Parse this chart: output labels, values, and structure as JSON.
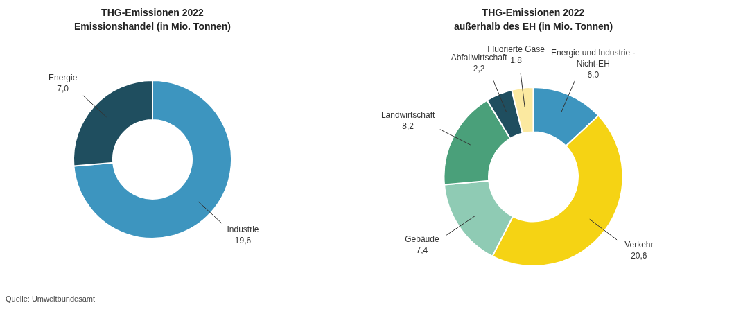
{
  "chart_data": [
    {
      "type": "donut",
      "title": "THG-Emissionen 2022",
      "subtitle": "Emissionshandel (in Mio. Tonnen)",
      "categories": [
        "Industrie",
        "Energie"
      ],
      "values": [
        19.6,
        7.0
      ],
      "value_labels": [
        "19,6",
        "7,0"
      ],
      "colors": [
        "#3d95bf",
        "#1f4e5f"
      ],
      "legend": false,
      "annotations": [
        "Quelle: Umweltbundesamt"
      ]
    },
    {
      "type": "donut",
      "title": "THG-Emissionen 2022",
      "subtitle": "außerhalb des EH (in Mio. Tonnen)",
      "categories": [
        "Energie und Industrie - Nicht-EH",
        "Verkehr",
        "Gebäude",
        "Landwirtschaft",
        "Abfallwirtschaft",
        "Fluorierte Gase"
      ],
      "values": [
        6.0,
        20.6,
        7.4,
        8.2,
        2.2,
        1.8
      ],
      "value_labels": [
        "6,0",
        "20,6",
        "7,4",
        "8,2",
        "2,2",
        "1,8"
      ],
      "colors": [
        "#3d95bf",
        "#f5d314",
        "#8fcbb4",
        "#4aa07a",
        "#1f4e5f",
        "#fbe9a0"
      ],
      "legend": false
    }
  ]
}
